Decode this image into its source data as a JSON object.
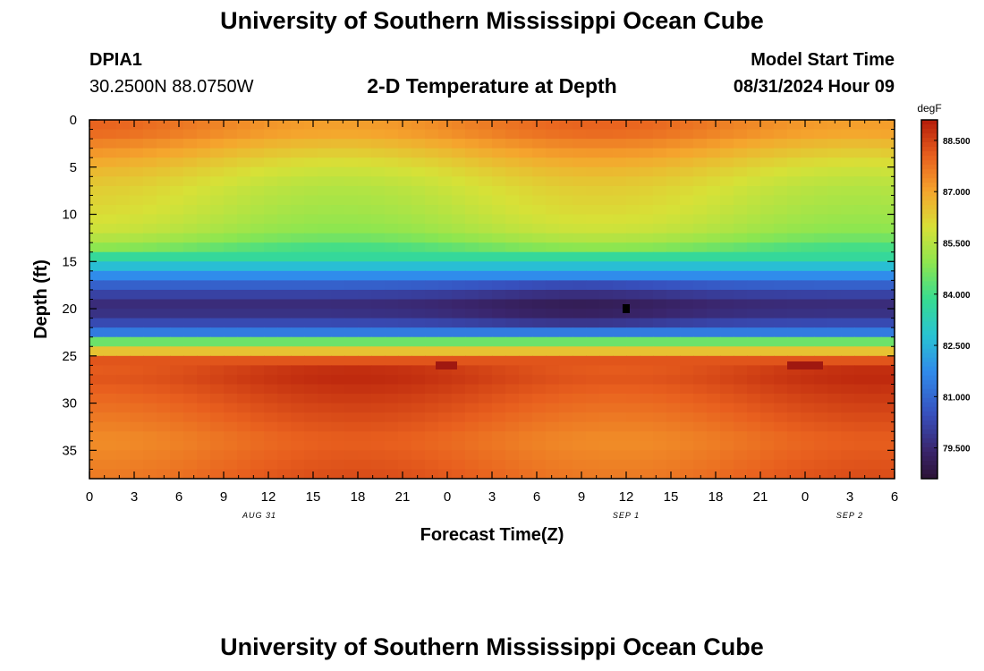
{
  "header": {
    "title": "University of Southern Mississippi Ocean Cube",
    "station": "DPIA1",
    "coords": "30.2500N  88.0750W",
    "subtitle": "2-D Temperature at Depth",
    "model_label": "Model Start Time",
    "model_time": "08/31/2024 Hour 09"
  },
  "footer": {
    "title": "University of Southern Mississippi Ocean Cube"
  },
  "chart_data": {
    "type": "heatmap",
    "xlabel": "Forecast Time(Z)",
    "ylabel": "Depth (ft)",
    "x_ticks": [
      "0",
      "3",
      "6",
      "9",
      "12",
      "15",
      "18",
      "21",
      "0",
      "3",
      "6",
      "9",
      "12",
      "15",
      "18",
      "21",
      "0",
      "3",
      "6"
    ],
    "date_labels": [
      {
        "label": "AUG 31",
        "tick_index": 3.8
      },
      {
        "label": "SEP 1",
        "tick_index": 12
      },
      {
        "label": "SEP 2",
        "tick_index": 17
      }
    ],
    "y_ticks": [
      0,
      5,
      10,
      15,
      20,
      25,
      30,
      35
    ],
    "ylim": [
      0,
      38
    ],
    "colorbar": {
      "unit": "degF",
      "ticks": [
        "88.500",
        "87.000",
        "85.500",
        "84.000",
        "82.500",
        "81.000",
        "79.500"
      ],
      "range": [
        78.6,
        89.1
      ]
    },
    "depth_profile_degF": [
      {
        "depth": 0,
        "temp": 87.6
      },
      {
        "depth": 1.5,
        "temp": 87.4
      },
      {
        "depth": 3,
        "temp": 86.9
      },
      {
        "depth": 5,
        "temp": 86.3
      },
      {
        "depth": 7,
        "temp": 85.9
      },
      {
        "depth": 10,
        "temp": 85.6
      },
      {
        "depth": 12,
        "temp": 85.3
      },
      {
        "depth": 14,
        "temp": 84.2
      },
      {
        "depth": 16,
        "temp": 82.2
      },
      {
        "depth": 18,
        "temp": 80.4
      },
      {
        "depth": 19.5,
        "temp": 79.6
      },
      {
        "depth": 21,
        "temp": 79.8
      },
      {
        "depth": 22.5,
        "temp": 81.4
      },
      {
        "depth": 23.5,
        "temp": 84.5
      },
      {
        "depth": 24.5,
        "temp": 86.5
      },
      {
        "depth": 25.5,
        "temp": 88.2
      },
      {
        "depth": 27,
        "temp": 88.6
      },
      {
        "depth": 30,
        "temp": 88.2
      },
      {
        "depth": 34,
        "temp": 87.7
      },
      {
        "depth": 38,
        "temp": 88.0
      }
    ]
  }
}
